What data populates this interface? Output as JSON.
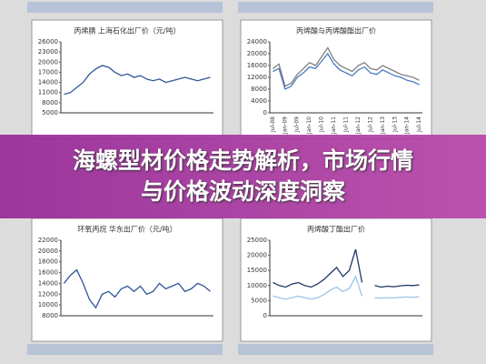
{
  "headline": [
    "海螺型材价格走势解析，市场行情",
    "与价格波动深度洞察"
  ],
  "chart_data": [
    {
      "type": "line",
      "title": "丙烯腈 上海石化出厂价（元/吨）",
      "categories": [
        null,
        null,
        null,
        null,
        null,
        null,
        null,
        null,
        null,
        null,
        null,
        null,
        null,
        null,
        null,
        null,
        null,
        null,
        null,
        null,
        null,
        null,
        null,
        null
      ],
      "ylim": [
        5000,
        26000
      ],
      "yticks": [
        5000,
        8000,
        11000,
        14000,
        17000,
        20000,
        23000,
        26000
      ],
      "series": [
        {
          "color": "#2f5597",
          "values": [
            10500,
            11000,
            12500,
            14000,
            16500,
            18000,
            19000,
            18500,
            17000,
            16000,
            16500,
            15500,
            16000,
            15000,
            14500,
            15000,
            14000,
            14500,
            15000,
            15500,
            15000,
            14500,
            15000,
            15500
          ]
        }
      ]
    },
    {
      "type": "line",
      "title": "丙烯酸与丙烯酸酯出厂价",
      "categories": [
        "Jul-08",
        null,
        "Jan-09",
        null,
        "Jul-09",
        null,
        "Jan-10",
        null,
        "Jul-10",
        null,
        "Jan-11",
        null,
        "Jul-11",
        null,
        "Jan-12",
        null,
        "Jul-12",
        null,
        "Jan-13",
        null,
        "Jul-13",
        null,
        "Jan-14",
        null,
        "Jul-14"
      ],
      "ylim": [
        0,
        24000
      ],
      "yticks": [
        0,
        4000,
        8000,
        12000,
        16000,
        20000,
        24000
      ],
      "series": [
        {
          "color": "#7f7f7f",
          "values": [
            15000,
            16500,
            9000,
            10000,
            13000,
            15000,
            17000,
            16000,
            19000,
            22000,
            18000,
            16000,
            15000,
            14000,
            16000,
            17000,
            15000,
            14500,
            16000,
            15000,
            14000,
            13000,
            12500,
            12000,
            11000
          ]
        },
        {
          "color": "#4a78c0",
          "values": [
            14000,
            15000,
            8000,
            9000,
            12000,
            13500,
            15500,
            15000,
            17500,
            20000,
            16500,
            14500,
            13500,
            12500,
            14500,
            15500,
            13500,
            13000,
            14500,
            13500,
            12500,
            12000,
            11000,
            10500,
            9500
          ]
        }
      ]
    },
    {
      "type": "line",
      "title": "环氧丙烷 华东出厂价（元/吨）",
      "categories": [
        null,
        null,
        null,
        null,
        null,
        null,
        null,
        null,
        null,
        null,
        null,
        null,
        null,
        null,
        null,
        null,
        null,
        null,
        null,
        null,
        null,
        null,
        null,
        null
      ],
      "ylim": [
        8000,
        22000
      ],
      "yticks": [
        8000,
        10000,
        12000,
        14000,
        16000,
        18000,
        20000,
        22000
      ],
      "series": [
        {
          "color": "#2f5597",
          "values": [
            14000,
            15500,
            16500,
            14000,
            11000,
            9500,
            12000,
            12500,
            11500,
            13000,
            13500,
            12500,
            13500,
            12000,
            12500,
            14000,
            13000,
            13500,
            14000,
            12500,
            13000,
            14000,
            13500,
            12500
          ]
        }
      ]
    },
    {
      "type": "line",
      "title": "丙烯酸丁酯出厂价",
      "categories": [
        null,
        null,
        null,
        null,
        null,
        null,
        null,
        null,
        null,
        null,
        null,
        null,
        null,
        null,
        null,
        null,
        null,
        null,
        null,
        null,
        null,
        null,
        null,
        null
      ],
      "ylim": [
        0,
        25000
      ],
      "yticks": [
        0,
        5000,
        10000,
        15000,
        20000,
        25000
      ],
      "series": [
        {
          "color": "#1f3864",
          "values": [
            11000,
            10000,
            9500,
            10500,
            11000,
            10000,
            9500,
            10500,
            12000,
            14000,
            16000,
            13000,
            15000,
            22000,
            11000,
            null,
            10000,
            9500,
            9800,
            9600,
            9900,
            10100,
            10000,
            10200
          ]
        },
        {
          "color": "#9dc3e6",
          "values": [
            6500,
            6000,
            5500,
            6000,
            6500,
            6000,
            5500,
            6000,
            7000,
            8500,
            9500,
            8000,
            9000,
            13000,
            6500,
            null,
            6000,
            5800,
            6000,
            5900,
            6100,
            6200,
            6100,
            6300
          ]
        }
      ]
    }
  ]
}
